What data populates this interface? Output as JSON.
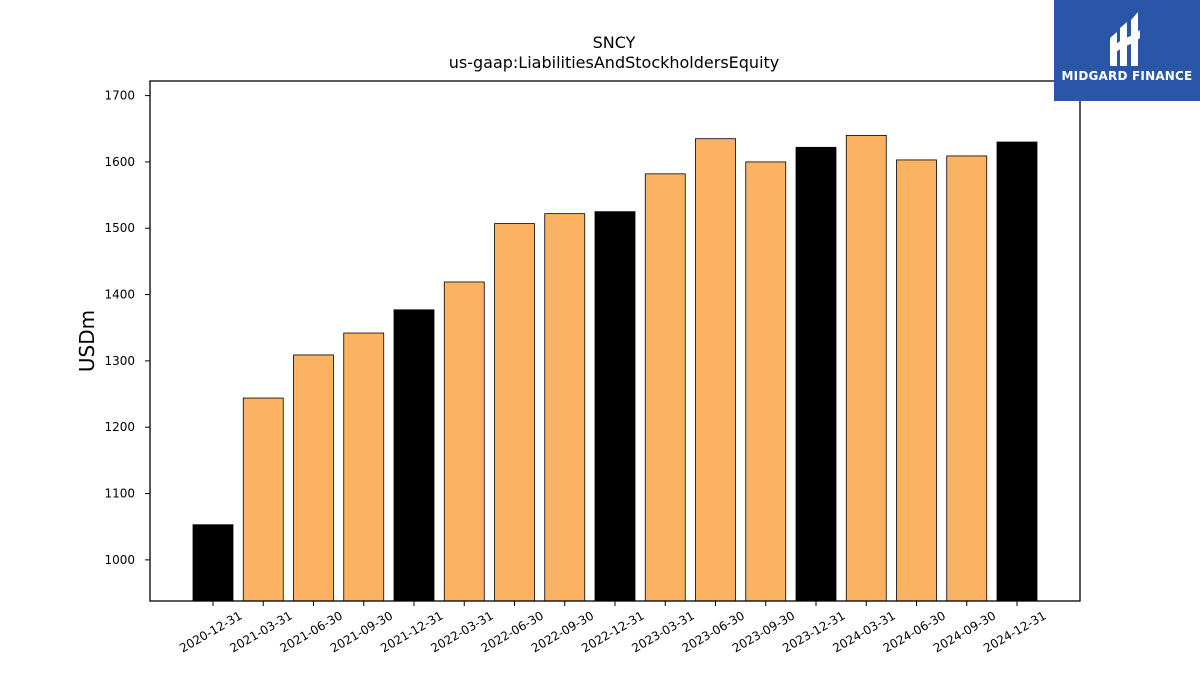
{
  "brand": {
    "name": "MIDGARD FINANCE",
    "logo_color": "#2a56a8"
  },
  "colors": {
    "year_end": "#000000",
    "quarter": "#fbb363",
    "edge": "#000000"
  },
  "chart_data": {
    "type": "bar",
    "title": "SNCY",
    "subtitle": "us-gaap:LiabilitiesAndStockholdersEquity",
    "xlabel": "",
    "ylabel": "USDm",
    "ylim": [
      938,
      1722
    ],
    "yticks": [
      1000,
      1100,
      1200,
      1300,
      1400,
      1500,
      1600,
      1700
    ],
    "grid": false,
    "categories": [
      "2020-12-31",
      "2021-03-31",
      "2021-06-30",
      "2021-09-30",
      "2021-12-31",
      "2022-03-31",
      "2022-06-30",
      "2022-09-30",
      "2022-12-31",
      "2023-03-31",
      "2023-06-30",
      "2023-09-30",
      "2023-12-31",
      "2024-03-31",
      "2024-06-30",
      "2024-09-30",
      "2024-12-31"
    ],
    "values": [
      1053,
      1244,
      1309,
      1342,
      1377,
      1419,
      1507,
      1522,
      1525,
      1582,
      1635,
      1600,
      1622,
      1640,
      1603,
      1609,
      1630
    ],
    "bar_color_keys": [
      "year_end",
      "quarter",
      "quarter",
      "quarter",
      "year_end",
      "quarter",
      "quarter",
      "quarter",
      "year_end",
      "quarter",
      "quarter",
      "quarter",
      "year_end",
      "quarter",
      "quarter",
      "quarter",
      "year_end"
    ]
  }
}
